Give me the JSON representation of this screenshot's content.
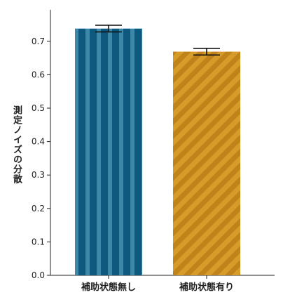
{
  "chart_data": {
    "type": "bar",
    "categories": [
      "補助状態無し",
      "補助状態有り"
    ],
    "values": [
      0.738,
      0.669
    ],
    "errors": [
      0.01,
      0.01
    ],
    "ylabel": "測定ノイズの分散",
    "xlabel": "",
    "ylim": [
      0.0,
      0.75
    ],
    "yticks": [
      "0.0",
      "0.1",
      "0.2",
      "0.3",
      "0.4",
      "0.5",
      "0.6",
      "0.7"
    ],
    "grid": false,
    "colors": {
      "bar1_base": "#0e5a7e",
      "bar1_stripe": "#3d88a8",
      "bar2_base": "#d79b2a",
      "bar2_stripe": "#c0831a",
      "error_bar": "#111111",
      "axis": "#222222"
    },
    "patterns": [
      "vertical-stripes",
      "diagonal-stripes"
    ]
  }
}
